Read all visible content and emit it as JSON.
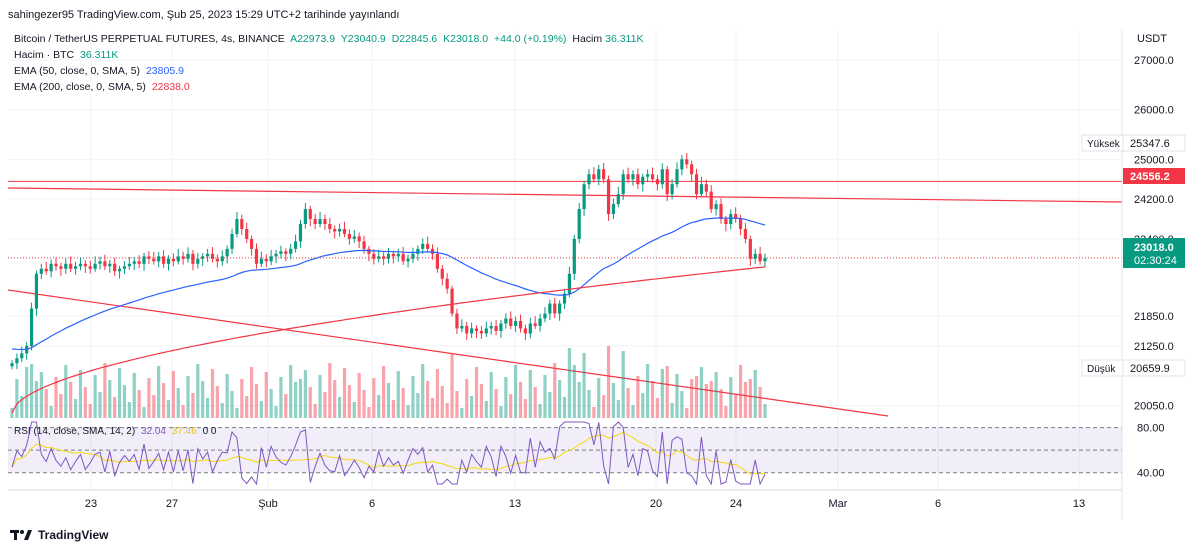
{
  "header": {
    "publisher": "sahingezer95 TradingView.com, Şub 25, 2023 15:29 UTC+2 tarihinde yayınlandı"
  },
  "legend": {
    "symbol": "Bitcoin / TetherUS PERPETUAL FUTURES, 4s, BINANCE",
    "o": "A22973.9",
    "h": "Y23040.9",
    "l": "D22845.6",
    "c": "K23018.0",
    "change": "+44.0 (+0.19%)",
    "vol_label": "Hacim",
    "vol_value": "36.311K",
    "vol_series": "Hacim · BTC",
    "vol_series_value": "36.311K",
    "ema50_label": "EMA (50, close, 0, SMA, 5)",
    "ema50_value": "23805.9",
    "ema200_label": "EMA (200, close, 0, SMA, 5)",
    "ema200_value": "22838.0",
    "rsi_label": "RSI (14, close, SMA, 14, 2)",
    "rsi_value": "32.04",
    "rsi_ma_value": "37.46",
    "rsi_extra": "0 0"
  },
  "price_axis": {
    "currency": "USDT"
  },
  "badges": {
    "high_label": "Yüksek",
    "high_value": "25347.6",
    "low_label": "Düşük",
    "low_value": "20659.9",
    "level_value": "24556.2",
    "last_value": "23018.0",
    "countdown": "02:30:24"
  },
  "footer": {
    "brand": "TradingView"
  },
  "colors": {
    "up": "#089981",
    "down": "#f23645",
    "ema50": "#2962ff",
    "ema200": "#f23645",
    "rsi": "#7e57c2",
    "rsi_ma": "#f5d90a"
  },
  "chart_data": {
    "type": "candlestick",
    "symbol": "BTCUSDT.P",
    "interval": "4h",
    "ylim": [
      19800,
      27600
    ],
    "price_ticks": [
      27000,
      26000,
      25000,
      24200,
      23400,
      21850,
      21250,
      20050
    ],
    "x_ticks": [
      "23",
      "27",
      "Şub",
      "6",
      "13",
      "20",
      "24",
      "Mar",
      "6",
      "13"
    ],
    "closes": [
      20900,
      21000,
      21100,
      21250,
      22000,
      22700,
      22800,
      22750,
      22900,
      22850,
      22800,
      22900,
      22800,
      22850,
      22900,
      22850,
      22800,
      22900,
      22950,
      22850,
      22900,
      22750,
      22800,
      22850,
      22900,
      22950,
      22900,
      23050,
      23000,
      22950,
      23050,
      22900,
      23000,
      22950,
      23050,
      23000,
      23100,
      22900,
      23000,
      23050,
      23100,
      23000,
      22950,
      23050,
      23200,
      23500,
      23800,
      23600,
      23400,
      23200,
      22900,
      23000,
      22950,
      23050,
      23100,
      23150,
      23100,
      23200,
      23350,
      23700,
      24000,
      23800,
      23700,
      23800,
      23700,
      23600,
      23550,
      23600,
      23500,
      23400,
      23450,
      23350,
      23200,
      23100,
      23000,
      23050,
      23000,
      23100,
      23050,
      23100,
      22950,
      23000,
      23100,
      23200,
      23300,
      23200,
      23100,
      22800,
      22600,
      22400,
      21900,
      21600,
      21650,
      21500,
      21600,
      21550,
      21500,
      21600,
      21650,
      21550,
      21700,
      21800,
      21650,
      21750,
      21600,
      21500,
      21700,
      21650,
      21800,
      21900,
      22100,
      21900,
      22100,
      22300,
      22700,
      23400,
      24000,
      24500,
      24700,
      24600,
      24800,
      24600,
      23900,
      24100,
      24300,
      24700,
      24600,
      24700,
      24500,
      24650,
      24700,
      24600,
      24500,
      24800,
      24300,
      24500,
      24800,
      25000,
      24900,
      24700,
      24300,
      24500,
      24350,
      24000,
      24100,
      23800,
      23700,
      23900,
      23800,
      23600,
      23400,
      23000,
      23100,
      22950,
      23018
    ],
    "ema50_last": 23805.9,
    "ema200_last": 22838.0,
    "high_marker": 25347.6,
    "low_marker": 20659.9,
    "horizontal_level": 24556.2,
    "last_price": 23018.0,
    "rsi": {
      "upper": 80,
      "middle": 60,
      "lower": 40,
      "ticks": [
        80,
        40
      ],
      "last": 32.04,
      "ma_last": 37.46
    }
  }
}
